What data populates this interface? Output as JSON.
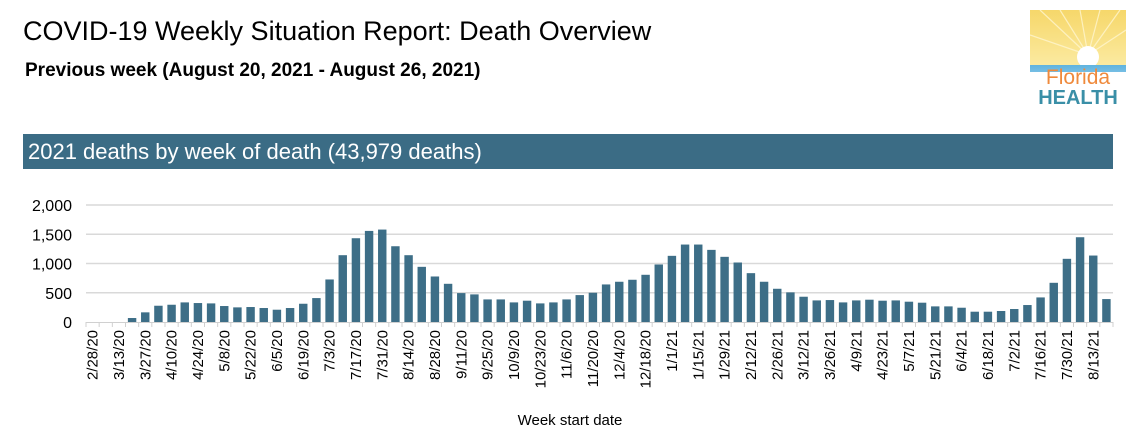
{
  "header": {
    "title": "COVID-19 Weekly Situation Report: Death Overview",
    "subtitle": "Previous week (August 20, 2021 - August 26, 2021)",
    "logo_text": [
      "Florida",
      "HEALTH"
    ]
  },
  "section_title": "2021 deaths by week of death (43,979 deaths)",
  "colors": {
    "bar": "#3d6e87",
    "band": "#3b6c85",
    "grid": "#d9d9d9"
  },
  "chart_data": {
    "type": "bar",
    "title": "",
    "xlabel": "Week start date",
    "ylabel": "",
    "ylim": [
      0,
      2000
    ],
    "yticks": [
      "0",
      "500",
      "1,000",
      "1,500",
      "2,000"
    ],
    "ytick_values": [
      0,
      500,
      1000,
      1500,
      2000
    ],
    "grid": true,
    "categories": [
      "2/28/20",
      "3/6/20",
      "3/13/20",
      "3/20/20",
      "3/27/20",
      "4/3/20",
      "4/10/20",
      "4/17/20",
      "4/24/20",
      "5/1/20",
      "5/8/20",
      "5/15/20",
      "5/22/20",
      "5/29/20",
      "6/5/20",
      "6/12/20",
      "6/19/20",
      "6/26/20",
      "7/3/20",
      "7/10/20",
      "7/17/20",
      "7/24/20",
      "7/31/20",
      "8/7/20",
      "8/14/20",
      "8/21/20",
      "8/28/20",
      "9/4/20",
      "9/11/20",
      "9/18/20",
      "9/25/20",
      "10/2/20",
      "10/9/20",
      "10/16/20",
      "10/23/20",
      "10/30/20",
      "11/6/20",
      "11/13/20",
      "11/20/20",
      "11/27/20",
      "12/4/20",
      "12/11/20",
      "12/18/20",
      "12/25/20",
      "1/1/21",
      "1/8/21",
      "1/15/21",
      "1/22/21",
      "1/29/21",
      "2/5/21",
      "2/12/21",
      "2/19/21",
      "2/26/21",
      "3/5/21",
      "3/12/21",
      "3/19/21",
      "3/26/21",
      "4/2/21",
      "4/9/21",
      "4/16/21",
      "4/23/21",
      "4/30/21",
      "5/7/21",
      "5/14/21",
      "5/21/21",
      "5/28/21",
      "6/4/21",
      "6/11/21",
      "6/18/21",
      "6/25/21",
      "7/2/21",
      "7/9/21",
      "7/16/21",
      "7/23/21",
      "7/30/21",
      "8/6/21",
      "8/13/21",
      "8/20/21"
    ],
    "shown_tick_labels": [
      "2/28/20",
      "3/13/20",
      "3/27/20",
      "4/10/20",
      "4/24/20",
      "5/8/20",
      "5/22/20",
      "6/5/20",
      "6/19/20",
      "7/3/20",
      "7/17/20",
      "7/31/20",
      "8/14/20",
      "8/28/20",
      "9/11/20",
      "9/25/20",
      "10/9/20",
      "10/23/20",
      "11/6/20",
      "11/20/20",
      "12/4/20",
      "12/18/20",
      "1/1/21",
      "1/15/21",
      "1/29/21",
      "2/12/21",
      "2/26/21",
      "3/12/21",
      "3/26/21",
      "4/9/21",
      "4/23/21",
      "5/7/21",
      "5/21/21",
      "6/4/21",
      "6/18/21",
      "7/2/21",
      "7/16/21",
      "7/30/21",
      "8/13/21"
    ],
    "values": [
      0,
      0,
      0,
      68,
      165,
      278,
      295,
      335,
      324,
      318,
      273,
      250,
      256,
      239,
      210,
      239,
      312,
      409,
      727,
      1142,
      1432,
      1557,
      1580,
      1295,
      1142,
      943,
      778,
      653,
      494,
      472,
      386,
      386,
      335,
      364,
      318,
      335,
      386,
      460,
      500,
      642,
      688,
      722,
      807,
      983,
      1131,
      1324,
      1324,
      1233,
      1114,
      1017,
      835,
      688,
      568,
      506,
      432,
      369,
      375,
      335,
      369,
      381,
      364,
      369,
      347,
      330,
      267,
      267,
      244,
      176,
      176,
      188,
      222,
      290,
      420,
      670,
      1080,
      1449,
      1136,
      392
    ]
  }
}
